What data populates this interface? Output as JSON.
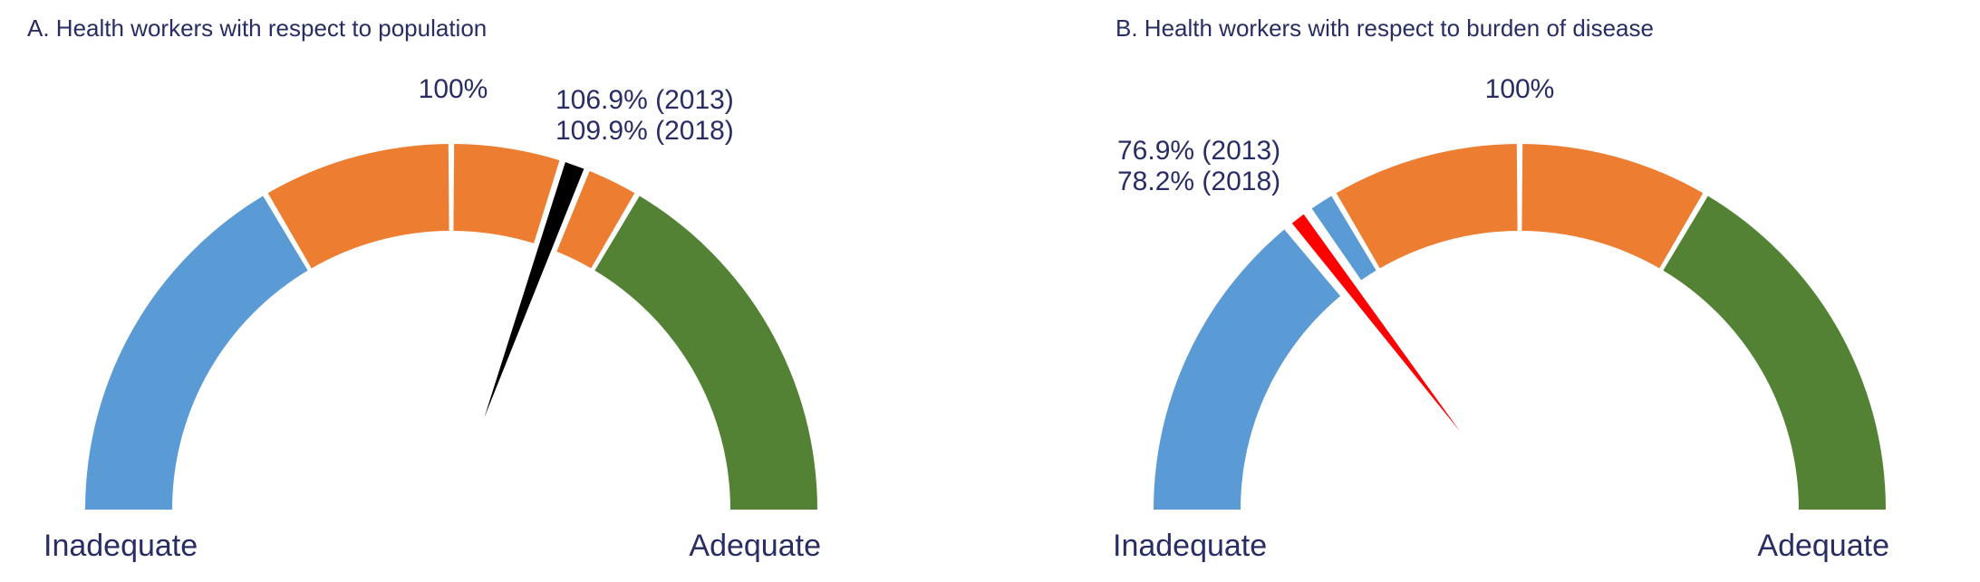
{
  "colors": {
    "background": "#ffffff",
    "text": "#282D64",
    "inadequate_blue": "#5B9BD5",
    "transition_orange": "#ED7D31",
    "adequate_green": "#548235",
    "needle_black": "#000000",
    "needle_red": "#FF0000"
  },
  "chart_data": [
    {
      "type": "gauge",
      "panel": "A",
      "title": "A. Health workers with respect to population",
      "top_tick_label": "100%",
      "left_end_label": "Inadequate",
      "right_end_label": "Adequate",
      "axis": {
        "top_value_pct": 100,
        "shape": "semicircle-180deg"
      },
      "segments": [
        {
          "label": "inadequate-zone",
          "color": "#5B9BD5",
          "start_deg": -90,
          "end_deg": -30.5
        },
        {
          "label": "transition-zone",
          "color": "#ED7D31",
          "start_deg": -30.5,
          "end_deg": 30.5
        },
        {
          "label": "adequate-zone",
          "color": "#548235",
          "start_deg": 30.5,
          "end_deg": 90
        }
      ],
      "divider_angles_deg": [
        -30.5,
        0,
        30.5
      ],
      "needle": {
        "color": "#000000",
        "angle_deg": 19.7,
        "readings": [
          {
            "value_pct": 106.9,
            "year": "2013"
          },
          {
            "value_pct": 109.9,
            "year": "2018"
          }
        ],
        "label_lines": [
          "106.9% (2013)",
          "109.9% (2018)"
        ]
      }
    },
    {
      "type": "gauge",
      "panel": "B",
      "title": "B. Health workers with respect to burden of disease",
      "top_tick_label": "100%",
      "left_end_label": "Inadequate",
      "right_end_label": "Adequate",
      "axis": {
        "top_value_pct": 100,
        "shape": "semicircle-180deg"
      },
      "segments": [
        {
          "label": "inadequate-zone",
          "color": "#5B9BD5",
          "start_deg": -90,
          "end_deg": -30.5
        },
        {
          "label": "transition-zone",
          "color": "#ED7D31",
          "start_deg": -30.5,
          "end_deg": 30.5
        },
        {
          "label": "adequate-zone",
          "color": "#548235",
          "start_deg": 30.5,
          "end_deg": 90
        }
      ],
      "divider_angles_deg": [
        -30.5,
        0,
        30.5
      ],
      "needle": {
        "color": "#FF0000",
        "angle_deg": -37.3,
        "readings": [
          {
            "value_pct": 76.9,
            "year": "2013"
          },
          {
            "value_pct": 78.2,
            "year": "2018"
          }
        ],
        "label_lines": [
          "76.9% (2013)",
          "78.2% (2018)"
        ]
      }
    }
  ]
}
